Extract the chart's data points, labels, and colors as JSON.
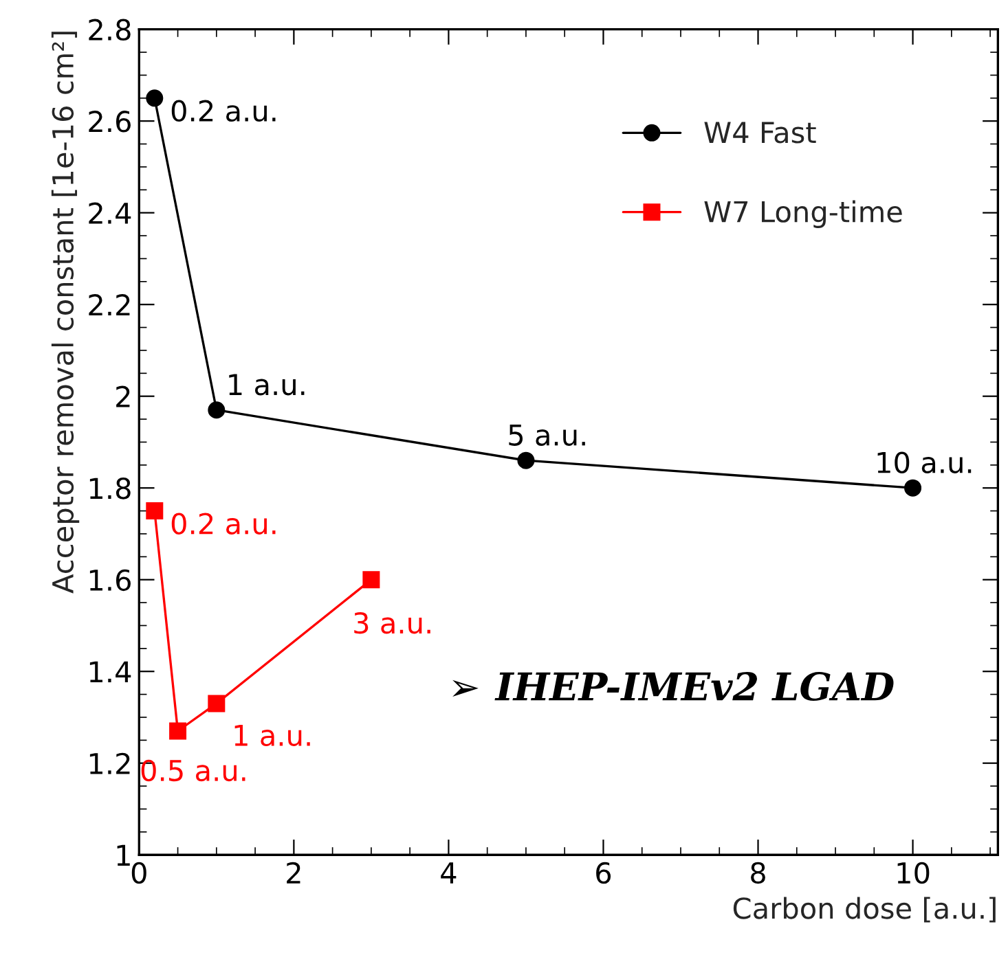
{
  "chart_data": {
    "type": "line",
    "xlabel": "Carbon dose [a.u.]",
    "ylabel": "Acceptor removal constant [1e-16 cm²]",
    "xlim": [
      0,
      11.1
    ],
    "xticks": [
      0,
      2,
      4,
      6,
      8,
      10
    ],
    "ylim": [
      1,
      2.8
    ],
    "yticks": [
      1,
      1.2,
      1.4,
      1.6,
      1.8,
      2,
      2.2,
      2.4,
      2.6,
      2.8
    ],
    "legend": "top right",
    "grid": false,
    "series": [
      {
        "name": "W4 Fast",
        "color": "#000000",
        "marker": "circle",
        "x": [
          0.2,
          1,
          5,
          10
        ],
        "values": [
          2.65,
          1.97,
          1.86,
          1.8
        ]
      },
      {
        "name": "W7 Long-time",
        "color": "#ff0000",
        "marker": "square",
        "x": [
          0.2,
          0.5,
          1,
          3
        ],
        "values": [
          1.75,
          1.27,
          1.33,
          1.6
        ]
      }
    ],
    "annotations": [
      {
        "text": "0.2 a.u.",
        "x": 0.2,
        "y": 2.65
      },
      {
        "text": "1 a.u.",
        "x": 1,
        "y": 1.97
      },
      {
        "text": "5 a.u.",
        "x": 5,
        "y": 1.86
      },
      {
        "text": "10 a.u.",
        "x": 10,
        "y": 1.8
      },
      {
        "text": "0.2 a.u.",
        "x": 0.2,
        "y": 1.75
      },
      {
        "text": "0.5 a.u.",
        "x": 0.5,
        "y": 1.27
      },
      {
        "text": "1 a.u.",
        "x": 1,
        "y": 1.33
      },
      {
        "text": "3 a.u.",
        "x": 3,
        "y": 1.6
      },
      "➢ IHEP-IMEv2 LGAD"
    ]
  }
}
